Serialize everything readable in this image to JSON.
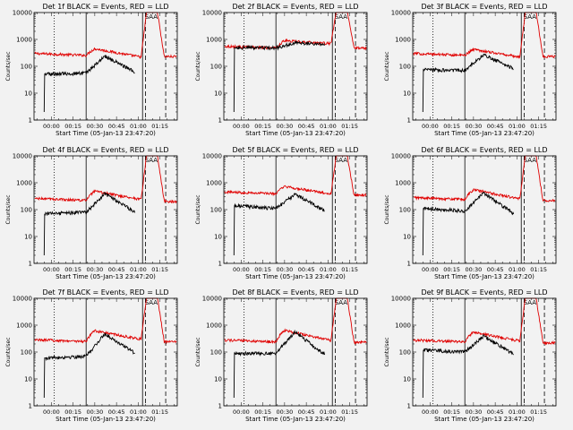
{
  "figure": {
    "background": "#f2f2f2",
    "events_color": "#000000",
    "lld_color": "#e00000"
  },
  "chart_data": [
    {
      "type": "line",
      "title": "Det 1f  BLACK = Events, RED = LLD",
      "xlabel": "Start Time (05-Jan-13 23:47:20)",
      "ylabel": "Counts/sec",
      "yscale": "log",
      "ylim": [
        1,
        10000
      ],
      "ytick_labels": [
        "1",
        "10",
        "100",
        "1000",
        "10000"
      ],
      "xlim_minutes": [
        -12,
        87
      ],
      "xtick_labels": [
        "00:00",
        "00:15",
        "00:30",
        "00:45",
        "01:00",
        "01:15"
      ],
      "grid": false,
      "events_profile": {
        "onset": 52,
        "pre": 55,
        "peak_min": 37,
        "peak": 240,
        "pre_flare": 60
      },
      "lld_profile": {
        "base": 300,
        "bump": 450,
        "dip": 220,
        "peak": 13000,
        "post": 230
      },
      "markers": [
        {
          "minute": 2,
          "style": "dotted"
        },
        {
          "minute": 24,
          "style": "solid"
        },
        {
          "minute": 63,
          "style": "solid"
        },
        {
          "minute": 65,
          "style": "dashed"
        },
        {
          "minute": 79,
          "style": "dashed"
        }
      ],
      "annotation": "SAA"
    },
    {
      "type": "line",
      "title": "Det 2f  BLACK = Events, RED = LLD",
      "xlabel": "Start Time (05-Jan-13 23:47:20)",
      "ylabel": "Counts/sec",
      "yscale": "log",
      "ylim": [
        1,
        10000
      ],
      "ytick_labels": [
        "1",
        "10",
        "100",
        "1000",
        "10000"
      ],
      "xlim_minutes": [
        -12,
        87
      ],
      "xtick_labels": [
        "00:00",
        "00:15",
        "00:30",
        "00:45",
        "01:00",
        "01:15"
      ],
      "grid": false,
      "events_profile": {
        "onset": 500,
        "pre": 480,
        "peak_min": 37,
        "peak": 750,
        "pre_flare": 650
      },
      "lld_profile": {
        "base": 560,
        "bump": 900,
        "dip": 700,
        "peak": 13000,
        "post": 480
      },
      "markers": [
        {
          "minute": 2,
          "style": "dotted"
        },
        {
          "minute": 24,
          "style": "solid"
        },
        {
          "minute": 63,
          "style": "solid"
        },
        {
          "minute": 65,
          "style": "dashed"
        },
        {
          "minute": 79,
          "style": "dashed"
        }
      ],
      "annotation": "SAA"
    },
    {
      "type": "line",
      "title": "Det 3f  BLACK = Events, RED = LLD",
      "xlabel": "Start Time (05-Jan-13 23:47:20)",
      "ylabel": "Counts/sec",
      "yscale": "log",
      "ylim": [
        1,
        10000
      ],
      "ytick_labels": [
        "1",
        "10",
        "100",
        "1000",
        "10000"
      ],
      "xlim_minutes": [
        -12,
        87
      ],
      "xtick_labels": [
        "00:00",
        "00:15",
        "00:30",
        "00:45",
        "01:00",
        "01:15"
      ],
      "grid": false,
      "events_profile": {
        "onset": 75,
        "pre": 70,
        "peak_min": 37,
        "peak": 270,
        "pre_flare": 80
      },
      "lld_profile": {
        "base": 300,
        "bump": 430,
        "dip": 220,
        "peak": 13000,
        "post": 230
      },
      "markers": [
        {
          "minute": 2,
          "style": "dotted"
        },
        {
          "minute": 24,
          "style": "solid"
        },
        {
          "minute": 63,
          "style": "solid"
        },
        {
          "minute": 65,
          "style": "dashed"
        },
        {
          "minute": 79,
          "style": "dashed"
        }
      ],
      "annotation": "SAA"
    },
    {
      "type": "line",
      "title": "Det 4f  BLACK = Events, RED = LLD",
      "xlabel": "Start Time (05-Jan-13 23:47:20)",
      "ylabel": "Counts/sec",
      "yscale": "log",
      "ylim": [
        1,
        10000
      ],
      "ytick_labels": [
        "1",
        "10",
        "100",
        "1000",
        "10000"
      ],
      "xlim_minutes": [
        -12,
        87
      ],
      "xtick_labels": [
        "00:00",
        "00:15",
        "00:30",
        "00:45",
        "01:00",
        "01:15"
      ],
      "grid": false,
      "events_profile": {
        "onset": 70,
        "pre": 80,
        "peak_min": 37,
        "peak": 400,
        "pre_flare": 80
      },
      "lld_profile": {
        "base": 260,
        "bump": 480,
        "dip": 240,
        "peak": 13000,
        "post": 200
      },
      "markers": [
        {
          "minute": 2,
          "style": "dotted"
        },
        {
          "minute": 24,
          "style": "solid"
        },
        {
          "minute": 63,
          "style": "solid"
        },
        {
          "minute": 65,
          "style": "dashed"
        },
        {
          "minute": 79,
          "style": "dashed"
        }
      ],
      "annotation": "SAA"
    },
    {
      "type": "line",
      "title": "Det 5f  BLACK = Events, RED = LLD",
      "xlabel": "Start Time (05-Jan-13 23:47:20)",
      "ylabel": "Counts/sec",
      "yscale": "log",
      "ylim": [
        1,
        10000
      ],
      "ytick_labels": [
        "1",
        "10",
        "100",
        "1000",
        "10000"
      ],
      "xlim_minutes": [
        -12,
        87
      ],
      "xtick_labels": [
        "00:00",
        "00:15",
        "00:30",
        "00:45",
        "01:00",
        "01:15"
      ],
      "grid": false,
      "events_profile": {
        "onset": 140,
        "pre": 110,
        "peak_min": 37,
        "peak": 380,
        "pre_flare": 90
      },
      "lld_profile": {
        "base": 460,
        "bump": 720,
        "dip": 380,
        "peak": 13000,
        "post": 350
      },
      "markers": [
        {
          "minute": 2,
          "style": "dotted"
        },
        {
          "minute": 24,
          "style": "solid"
        },
        {
          "minute": 63,
          "style": "solid"
        },
        {
          "minute": 65,
          "style": "dashed"
        },
        {
          "minute": 79,
          "style": "dashed"
        }
      ],
      "annotation": "SAA"
    },
    {
      "type": "line",
      "title": "Det 6f  BLACK = Events, RED = LLD",
      "xlabel": "Start Time (05-Jan-13 23:47:20)",
      "ylabel": "Counts/sec",
      "yscale": "log",
      "ylim": [
        1,
        10000
      ],
      "ytick_labels": [
        "1",
        "10",
        "100",
        "1000",
        "10000"
      ],
      "xlim_minutes": [
        -12,
        87
      ],
      "xtick_labels": [
        "00:00",
        "00:15",
        "00:30",
        "00:45",
        "01:00",
        "01:15"
      ],
      "grid": false,
      "events_profile": {
        "onset": 110,
        "pre": 90,
        "peak_min": 37,
        "peak": 420,
        "pre_flare": 70
      },
      "lld_profile": {
        "base": 280,
        "bump": 550,
        "dip": 250,
        "peak": 13000,
        "post": 220
      },
      "markers": [
        {
          "minute": 2,
          "style": "dotted"
        },
        {
          "minute": 24,
          "style": "solid"
        },
        {
          "minute": 63,
          "style": "solid"
        },
        {
          "minute": 65,
          "style": "dashed"
        },
        {
          "minute": 79,
          "style": "dashed"
        }
      ],
      "annotation": "SAA"
    },
    {
      "type": "line",
      "title": "Det 7f  BLACK = Events, RED = LLD",
      "xlabel": "Start Time (05-Jan-13 23:47:20)",
      "ylabel": "Counts/sec",
      "yscale": "log",
      "ylim": [
        1,
        10000
      ],
      "ytick_labels": [
        "1",
        "10",
        "100",
        "1000",
        "10000"
      ],
      "xlim_minutes": [
        -12,
        87
      ],
      "xtick_labels": [
        "00:00",
        "00:15",
        "00:30",
        "00:45",
        "01:00",
        "01:15"
      ],
      "grid": false,
      "events_profile": {
        "onset": 60,
        "pre": 70,
        "peak_min": 37,
        "peak": 480,
        "pre_flare": 90
      },
      "lld_profile": {
        "base": 290,
        "bump": 620,
        "dip": 300,
        "peak": 13000,
        "post": 240
      },
      "markers": [
        {
          "minute": 2,
          "style": "dotted"
        },
        {
          "minute": 24,
          "style": "solid"
        },
        {
          "minute": 63,
          "style": "solid"
        },
        {
          "minute": 65,
          "style": "dashed"
        },
        {
          "minute": 79,
          "style": "dashed"
        }
      ],
      "annotation": "SAA"
    },
    {
      "type": "line",
      "title": "Det 8f  BLACK = Events, RED = LLD",
      "xlabel": "Start Time (05-Jan-13 23:47:20)",
      "ylabel": "Counts/sec",
      "yscale": "log",
      "ylim": [
        1,
        10000
      ],
      "ytick_labels": [
        "1",
        "10",
        "100",
        "1000",
        "10000"
      ],
      "xlim_minutes": [
        -12,
        87
      ],
      "xtick_labels": [
        "00:00",
        "00:15",
        "00:30",
        "00:45",
        "01:00",
        "01:15"
      ],
      "grid": false,
      "events_profile": {
        "onset": 90,
        "pre": 90,
        "peak_min": 37,
        "peak": 560,
        "pre_flare": 80
      },
      "lld_profile": {
        "base": 280,
        "bump": 650,
        "dip": 270,
        "peak": 13000,
        "post": 230
      },
      "markers": [
        {
          "minute": 2,
          "style": "dotted"
        },
        {
          "minute": 24,
          "style": "solid"
        },
        {
          "minute": 63,
          "style": "solid"
        },
        {
          "minute": 65,
          "style": "dashed"
        },
        {
          "minute": 79,
          "style": "dashed"
        }
      ],
      "annotation": "SAA"
    },
    {
      "type": "line",
      "title": "Det 9f  BLACK = Events, RED = LLD",
      "xlabel": "Start Time (05-Jan-13 23:47:20)",
      "ylabel": "Counts/sec",
      "yscale": "log",
      "ylim": [
        1,
        10000
      ],
      "ytick_labels": [
        "1",
        "10",
        "100",
        "1000",
        "10000"
      ],
      "xlim_minutes": [
        -12,
        87
      ],
      "xtick_labels": [
        "00:00",
        "00:15",
        "00:30",
        "00:45",
        "01:00",
        "01:15"
      ],
      "grid": false,
      "events_profile": {
        "onset": 120,
        "pre": 100,
        "peak_min": 37,
        "peak": 400,
        "pre_flare": 80
      },
      "lld_profile": {
        "base": 280,
        "bump": 550,
        "dip": 260,
        "peak": 13000,
        "post": 220
      },
      "markers": [
        {
          "minute": 2,
          "style": "dotted"
        },
        {
          "minute": 24,
          "style": "solid"
        },
        {
          "minute": 63,
          "style": "solid"
        },
        {
          "minute": 65,
          "style": "dashed"
        },
        {
          "minute": 79,
          "style": "dashed"
        }
      ],
      "annotation": "SAA"
    }
  ]
}
